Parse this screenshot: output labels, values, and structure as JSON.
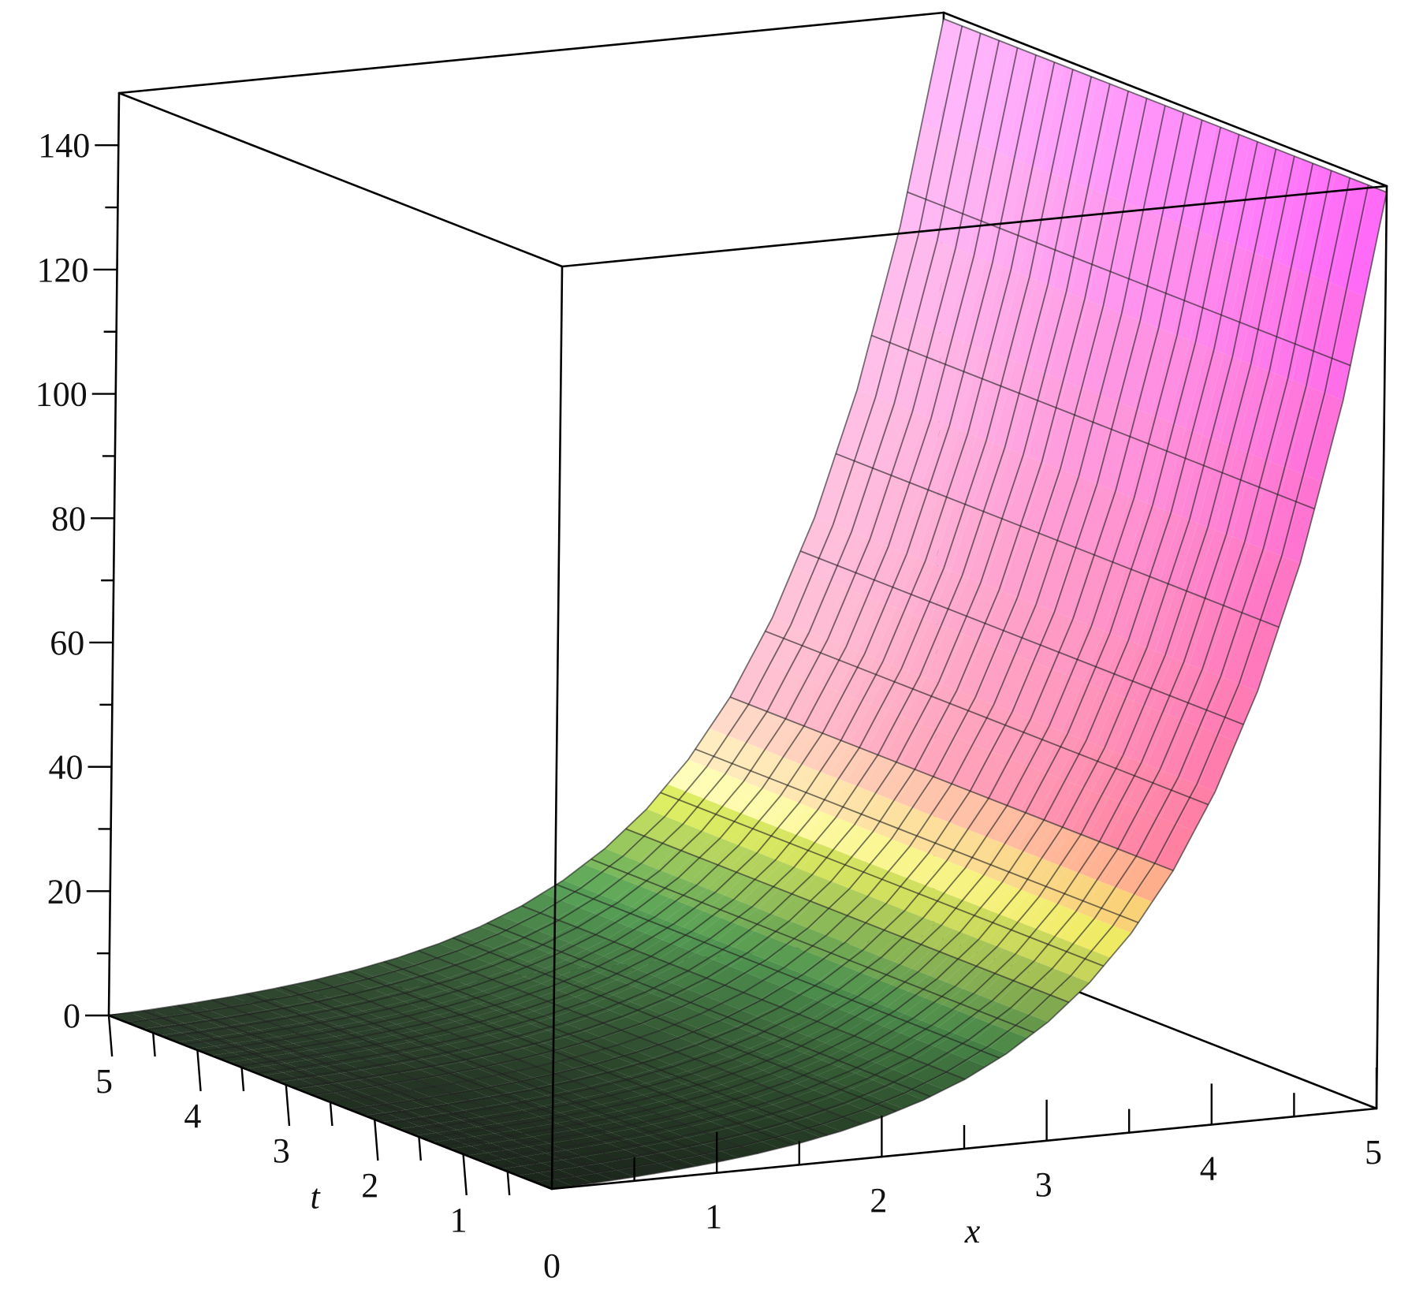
{
  "chart_data": {
    "type": "surface3d",
    "xlabel": "x",
    "ylabel": "t",
    "zlabel": "",
    "x_range": [
      0,
      5
    ],
    "t_range": [
      0,
      5
    ],
    "z_range": [
      0,
      148.4
    ],
    "x_ticks": [
      "0",
      "1",
      "2",
      "3",
      "4",
      "5"
    ],
    "t_ticks": [
      "1",
      "2",
      "3",
      "4",
      "5"
    ],
    "z_ticks": [
      "0",
      "20",
      "40",
      "60",
      "80",
      "100",
      "120",
      "140"
    ],
    "grid": true,
    "surface": {
      "depends_on": "x",
      "x": [
        0,
        0.25,
        0.5,
        0.75,
        1,
        1.25,
        1.5,
        1.75,
        2,
        2.25,
        2.5,
        2.75,
        3,
        3.25,
        3.5,
        3.75,
        4,
        4.25,
        4.5,
        4.75,
        5
      ],
      "z": [
        0,
        0.28,
        0.65,
        1.12,
        1.72,
        2.49,
        3.48,
        4.75,
        6.39,
        8.49,
        11.18,
        14.64,
        19.09,
        24.79,
        32.12,
        41.52,
        53.6,
        69.1,
        89.02,
        114.6,
        147.4
      ]
    },
    "colorscale": [
      {
        "stop": 0.0,
        "color": "#2a3a2a"
      },
      {
        "stop": 0.1,
        "color": "#5aa85a"
      },
      {
        "stop": 0.2,
        "color": "#ffff66"
      },
      {
        "stop": 0.3,
        "color": "#ff7fa0"
      },
      {
        "stop": 1.0,
        "color": "#ff66ff"
      }
    ]
  }
}
